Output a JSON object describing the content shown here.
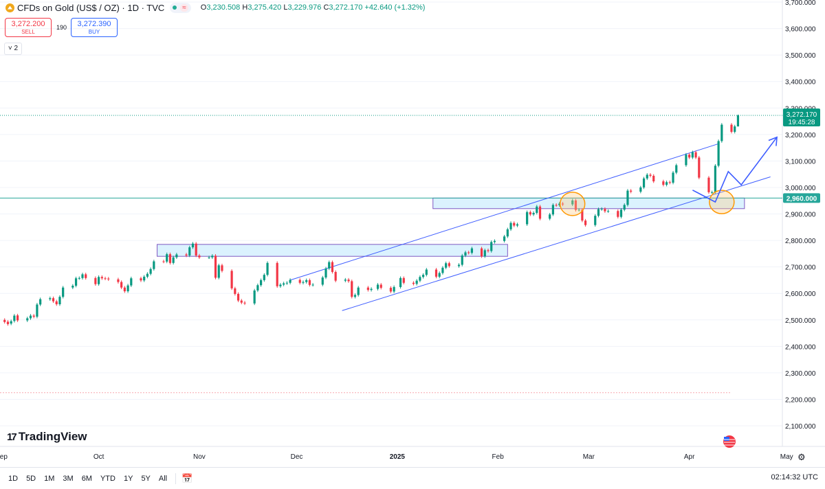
{
  "header": {
    "symbol": "CFDs on Gold (US$ / OZ) · 1D · TVC",
    "open_key": "O",
    "open": "3,230.508",
    "high_key": "H",
    "high": "3,275.420",
    "low_key": "L",
    "low": "3,229.976",
    "close_key": "C",
    "close": "3,272.170",
    "change": "+42.640 (+1.32%)",
    "wave_glyph": "≈"
  },
  "trade": {
    "sell_price": "3,272.200",
    "sell_label": "SELL",
    "spread": "190",
    "buy_price": "3,272.390",
    "buy_label": "BUY"
  },
  "indicators_collapse": "˅ 2",
  "logo": {
    "mark": "17",
    "text": "TradingView"
  },
  "timeframes": [
    "1D",
    "5D",
    "1M",
    "3M",
    "6M",
    "YTD",
    "1Y",
    "5Y",
    "All"
  ],
  "clock": "02:14:32 UTC",
  "colors": {
    "up": "#089981",
    "down": "#f23645",
    "trend": "#3d5cff",
    "zone_fill": "#cfeefd",
    "zone_border": "#7e57c2",
    "circle": "#ff9800",
    "level": "#26a69a"
  },
  "chart_data": {
    "type": "candlestick",
    "title": "CFDs on Gold (US$ / OZ) · 1D · TVC",
    "ylim": [
      2050,
      3700
    ],
    "y_ticks": [
      2100,
      2200,
      2300,
      2400,
      2500,
      2600,
      2700,
      2800,
      2900,
      3000,
      3100,
      3200,
      3300,
      3400,
      3500,
      3600,
      3700
    ],
    "y_tick_labels": [
      "2,100.000",
      "2,200.000",
      "2,300.000",
      "2,400.000",
      "2,500.000",
      "2,600.000",
      "2,700.000",
      "2,800.000",
      "2,900.000",
      "3,000.000",
      "3,100.000",
      "3,200.000",
      "3,300.000",
      "3,400.000",
      "3,500.000",
      "3,600.000",
      "3,700.000"
    ],
    "x_labels": [
      {
        "label": "Sep",
        "date": "2024-09-01"
      },
      {
        "label": "Oct",
        "date": "2024-10-01"
      },
      {
        "label": "Nov",
        "date": "2024-11-01"
      },
      {
        "label": "Dec",
        "date": "2024-12-01"
      },
      {
        "label": "2025",
        "date": "2025-01-01"
      },
      {
        "label": "Feb",
        "date": "2025-02-01"
      },
      {
        "label": "Mar",
        "date": "2025-03-01"
      },
      {
        "label": "Apr",
        "date": "2025-04-01"
      },
      {
        "label": "May",
        "date": "2025-05-01"
      }
    ],
    "start_date": "2024-09-01",
    "series": [
      {
        "d": "2024-09-02",
        "o": 2500,
        "c": 2492
      },
      {
        "d": "2024-09-03",
        "o": 2493,
        "c": 2484
      },
      {
        "d": "2024-09-04",
        "o": 2486,
        "c": 2495
      },
      {
        "d": "2024-09-05",
        "o": 2496,
        "c": 2516
      },
      {
        "d": "2024-09-06",
        "o": 2517,
        "c": 2498
      },
      {
        "d": "2024-09-09",
        "o": 2498,
        "c": 2506
      },
      {
        "d": "2024-09-10",
        "o": 2506,
        "c": 2516
      },
      {
        "d": "2024-09-11",
        "o": 2516,
        "c": 2512
      },
      {
        "d": "2024-09-12",
        "o": 2512,
        "c": 2558
      },
      {
        "d": "2024-09-13",
        "o": 2558,
        "c": 2578
      },
      {
        "d": "2024-09-16",
        "o": 2578,
        "c": 2582
      },
      {
        "d": "2024-09-17",
        "o": 2582,
        "c": 2570
      },
      {
        "d": "2024-09-18",
        "o": 2570,
        "c": 2559
      },
      {
        "d": "2024-09-19",
        "o": 2559,
        "c": 2587
      },
      {
        "d": "2024-09-20",
        "o": 2587,
        "c": 2622
      },
      {
        "d": "2024-09-23",
        "o": 2622,
        "c": 2629
      },
      {
        "d": "2024-09-24",
        "o": 2629,
        "c": 2657
      },
      {
        "d": "2024-09-25",
        "o": 2657,
        "c": 2658
      },
      {
        "d": "2024-09-26",
        "o": 2658,
        "c": 2672
      },
      {
        "d": "2024-09-27",
        "o": 2672,
        "c": 2658
      },
      {
        "d": "2024-09-30",
        "o": 2658,
        "c": 2635
      },
      {
        "d": "2024-10-01",
        "o": 2635,
        "c": 2662
      },
      {
        "d": "2024-10-02",
        "o": 2662,
        "c": 2657
      },
      {
        "d": "2024-10-03",
        "o": 2657,
        "c": 2656
      },
      {
        "d": "2024-10-04",
        "o": 2656,
        "c": 2653
      },
      {
        "d": "2024-10-07",
        "o": 2653,
        "c": 2643
      },
      {
        "d": "2024-10-08",
        "o": 2643,
        "c": 2622
      },
      {
        "d": "2024-10-09",
        "o": 2622,
        "c": 2608
      },
      {
        "d": "2024-10-10",
        "o": 2608,
        "c": 2630
      },
      {
        "d": "2024-10-11",
        "o": 2630,
        "c": 2657
      },
      {
        "d": "2024-10-14",
        "o": 2657,
        "c": 2649
      },
      {
        "d": "2024-10-15",
        "o": 2649,
        "c": 2663
      },
      {
        "d": "2024-10-16",
        "o": 2663,
        "c": 2674
      },
      {
        "d": "2024-10-17",
        "o": 2674,
        "c": 2692
      },
      {
        "d": "2024-10-18",
        "o": 2692,
        "c": 2721
      },
      {
        "d": "2024-10-21",
        "o": 2721,
        "c": 2720
      },
      {
        "d": "2024-10-22",
        "o": 2720,
        "c": 2748
      },
      {
        "d": "2024-10-23",
        "o": 2748,
        "c": 2715
      },
      {
        "d": "2024-10-24",
        "o": 2715,
        "c": 2736
      },
      {
        "d": "2024-10-25",
        "o": 2736,
        "c": 2747
      },
      {
        "d": "2024-10-28",
        "o": 2747,
        "c": 2743
      },
      {
        "d": "2024-10-29",
        "o": 2743,
        "c": 2774
      },
      {
        "d": "2024-10-30",
        "o": 2774,
        "c": 2788
      },
      {
        "d": "2024-10-31",
        "o": 2788,
        "c": 2743
      },
      {
        "d": "2024-11-01",
        "o": 2743,
        "c": 2736
      },
      {
        "d": "2024-11-04",
        "o": 2736,
        "c": 2736
      },
      {
        "d": "2024-11-05",
        "o": 2736,
        "c": 2742
      },
      {
        "d": "2024-11-06",
        "o": 2742,
        "c": 2659
      },
      {
        "d": "2024-11-07",
        "o": 2659,
        "c": 2706
      },
      {
        "d": "2024-11-08",
        "o": 2706,
        "c": 2685
      },
      {
        "d": "2024-11-11",
        "o": 2685,
        "c": 2619
      },
      {
        "d": "2024-11-12",
        "o": 2619,
        "c": 2598
      },
      {
        "d": "2024-11-13",
        "o": 2598,
        "c": 2573
      },
      {
        "d": "2024-11-14",
        "o": 2573,
        "c": 2565
      },
      {
        "d": "2024-11-15",
        "o": 2565,
        "c": 2562
      },
      {
        "d": "2024-11-18",
        "o": 2562,
        "c": 2611
      },
      {
        "d": "2024-11-19",
        "o": 2611,
        "c": 2631
      },
      {
        "d": "2024-11-20",
        "o": 2631,
        "c": 2650
      },
      {
        "d": "2024-11-21",
        "o": 2650,
        "c": 2670
      },
      {
        "d": "2024-11-22",
        "o": 2670,
        "c": 2715
      },
      {
        "d": "2024-11-25",
        "o": 2715,
        "c": 2627
      },
      {
        "d": "2024-11-26",
        "o": 2627,
        "c": 2633
      },
      {
        "d": "2024-11-27",
        "o": 2633,
        "c": 2638
      },
      {
        "d": "2024-11-28",
        "o": 2638,
        "c": 2640
      },
      {
        "d": "2024-11-29",
        "o": 2640,
        "c": 2651
      },
      {
        "d": "2024-12-02",
        "o": 2651,
        "c": 2640
      },
      {
        "d": "2024-12-03",
        "o": 2640,
        "c": 2643
      },
      {
        "d": "2024-12-04",
        "o": 2643,
        "c": 2650
      },
      {
        "d": "2024-12-05",
        "o": 2650,
        "c": 2632
      },
      {
        "d": "2024-12-06",
        "o": 2632,
        "c": 2633
      },
      {
        "d": "2024-12-09",
        "o": 2633,
        "c": 2660
      },
      {
        "d": "2024-12-10",
        "o": 2660,
        "c": 2694
      },
      {
        "d": "2024-12-11",
        "o": 2694,
        "c": 2718
      },
      {
        "d": "2024-12-12",
        "o": 2718,
        "c": 2681
      },
      {
        "d": "2024-12-13",
        "o": 2681,
        "c": 2648
      },
      {
        "d": "2024-12-16",
        "o": 2648,
        "c": 2652
      },
      {
        "d": "2024-12-17",
        "o": 2652,
        "c": 2646
      },
      {
        "d": "2024-12-18",
        "o": 2646,
        "c": 2587
      },
      {
        "d": "2024-12-19",
        "o": 2587,
        "c": 2594
      },
      {
        "d": "2024-12-20",
        "o": 2594,
        "c": 2622
      },
      {
        "d": "2024-12-23",
        "o": 2622,
        "c": 2613
      },
      {
        "d": "2024-12-24",
        "o": 2613,
        "c": 2617
      },
      {
        "d": "2024-12-26",
        "o": 2617,
        "c": 2633
      },
      {
        "d": "2024-12-27",
        "o": 2633,
        "c": 2621
      },
      {
        "d": "2024-12-30",
        "o": 2621,
        "c": 2607
      },
      {
        "d": "2024-12-31",
        "o": 2607,
        "c": 2624
      },
      {
        "d": "2025-01-02",
        "o": 2624,
        "c": 2658
      },
      {
        "d": "2025-01-03",
        "o": 2658,
        "c": 2640
      },
      {
        "d": "2025-01-06",
        "o": 2640,
        "c": 2636
      },
      {
        "d": "2025-01-07",
        "o": 2636,
        "c": 2648
      },
      {
        "d": "2025-01-08",
        "o": 2648,
        "c": 2662
      },
      {
        "d": "2025-01-09",
        "o": 2662,
        "c": 2670
      },
      {
        "d": "2025-01-10",
        "o": 2670,
        "c": 2690
      },
      {
        "d": "2025-01-13",
        "o": 2690,
        "c": 2663
      },
      {
        "d": "2025-01-14",
        "o": 2663,
        "c": 2677
      },
      {
        "d": "2025-01-15",
        "o": 2677,
        "c": 2697
      },
      {
        "d": "2025-01-16",
        "o": 2697,
        "c": 2714
      },
      {
        "d": "2025-01-17",
        "o": 2714,
        "c": 2703
      },
      {
        "d": "2025-01-20",
        "o": 2703,
        "c": 2708
      },
      {
        "d": "2025-01-21",
        "o": 2708,
        "c": 2743
      },
      {
        "d": "2025-01-22",
        "o": 2743,
        "c": 2755
      },
      {
        "d": "2025-01-23",
        "o": 2755,
        "c": 2753
      },
      {
        "d": "2025-01-24",
        "o": 2753,
        "c": 2770
      },
      {
        "d": "2025-01-27",
        "o": 2770,
        "c": 2740
      },
      {
        "d": "2025-01-28",
        "o": 2740,
        "c": 2763
      },
      {
        "d": "2025-01-29",
        "o": 2763,
        "c": 2760
      },
      {
        "d": "2025-01-30",
        "o": 2760,
        "c": 2794
      },
      {
        "d": "2025-01-31",
        "o": 2794,
        "c": 2798
      },
      {
        "d": "2025-02-03",
        "o": 2798,
        "c": 2815
      },
      {
        "d": "2025-02-04",
        "o": 2815,
        "c": 2842
      },
      {
        "d": "2025-02-05",
        "o": 2842,
        "c": 2866
      },
      {
        "d": "2025-02-06",
        "o": 2866,
        "c": 2856
      },
      {
        "d": "2025-02-07",
        "o": 2856,
        "c": 2861
      },
      {
        "d": "2025-02-10",
        "o": 2861,
        "c": 2907
      },
      {
        "d": "2025-02-11",
        "o": 2907,
        "c": 2898
      },
      {
        "d": "2025-02-12",
        "o": 2898,
        "c": 2904
      },
      {
        "d": "2025-02-13",
        "o": 2904,
        "c": 2928
      },
      {
        "d": "2025-02-14",
        "o": 2928,
        "c": 2882
      },
      {
        "d": "2025-02-17",
        "o": 2882,
        "c": 2898
      },
      {
        "d": "2025-02-18",
        "o": 2898,
        "c": 2934
      },
      {
        "d": "2025-02-19",
        "o": 2934,
        "c": 2933
      },
      {
        "d": "2025-02-20",
        "o": 2933,
        "c": 2939
      },
      {
        "d": "2025-02-21",
        "o": 2939,
        "c": 2936
      },
      {
        "d": "2025-02-24",
        "o": 2936,
        "c": 2951
      },
      {
        "d": "2025-02-25",
        "o": 2951,
        "c": 2915
      },
      {
        "d": "2025-02-26",
        "o": 2915,
        "c": 2916
      },
      {
        "d": "2025-02-27",
        "o": 2916,
        "c": 2875
      },
      {
        "d": "2025-02-28",
        "o": 2875,
        "c": 2858
      },
      {
        "d": "2025-03-03",
        "o": 2858,
        "c": 2893
      },
      {
        "d": "2025-03-04",
        "o": 2893,
        "c": 2918
      },
      {
        "d": "2025-03-05",
        "o": 2918,
        "c": 2919
      },
      {
        "d": "2025-03-06",
        "o": 2919,
        "c": 2910
      },
      {
        "d": "2025-03-07",
        "o": 2910,
        "c": 2911
      },
      {
        "d": "2025-03-10",
        "o": 2911,
        "c": 2889
      },
      {
        "d": "2025-03-11",
        "o": 2889,
        "c": 2916
      },
      {
        "d": "2025-03-12",
        "o": 2916,
        "c": 2934
      },
      {
        "d": "2025-03-13",
        "o": 2934,
        "c": 2988
      },
      {
        "d": "2025-03-14",
        "o": 2988,
        "c": 2984
      },
      {
        "d": "2025-03-17",
        "o": 2984,
        "c": 3000
      },
      {
        "d": "2025-03-18",
        "o": 3000,
        "c": 3034
      },
      {
        "d": "2025-03-19",
        "o": 3034,
        "c": 3048
      },
      {
        "d": "2025-03-20",
        "o": 3048,
        "c": 3044
      },
      {
        "d": "2025-03-21",
        "o": 3044,
        "c": 3023
      },
      {
        "d": "2025-03-24",
        "o": 3023,
        "c": 3010
      },
      {
        "d": "2025-03-25",
        "o": 3010,
        "c": 3020
      },
      {
        "d": "2025-03-26",
        "o": 3020,
        "c": 3018
      },
      {
        "d": "2025-03-27",
        "o": 3018,
        "c": 3056
      },
      {
        "d": "2025-03-28",
        "o": 3056,
        "c": 3084
      },
      {
        "d": "2025-03-31",
        "o": 3084,
        "c": 3124
      },
      {
        "d": "2025-04-01",
        "o": 3124,
        "c": 3113
      },
      {
        "d": "2025-04-02",
        "o": 3113,
        "c": 3133
      },
      {
        "d": "2025-04-03",
        "o": 3133,
        "c": 3113
      },
      {
        "d": "2025-04-04",
        "o": 3113,
        "c": 3037
      },
      {
        "d": "2025-04-07",
        "o": 3037,
        "c": 2982
      },
      {
        "d": "2025-04-08",
        "o": 2982,
        "c": 2982
      },
      {
        "d": "2025-04-09",
        "o": 2982,
        "c": 3082
      },
      {
        "d": "2025-04-10",
        "o": 3082,
        "c": 3175
      },
      {
        "d": "2025-04-11",
        "o": 3175,
        "c": 3237
      },
      {
        "d": "2025-04-14",
        "o": 3237,
        "c": 3210
      },
      {
        "d": "2025-04-15",
        "o": 3210,
        "c": 3230.508
      }
    ],
    "last_candle": {
      "d": "2025-04-16",
      "o": 3230.508,
      "h": 3275.42,
      "l": 3229.976,
      "c": 3272.17
    },
    "price_label": {
      "value": "3,272.170",
      "countdown": "19:45:28"
    },
    "level_line": {
      "value": 2960,
      "label": "2,960.000"
    },
    "dashed_level": 2225,
    "zones": [
      {
        "from": "2024-10-19",
        "to": "2025-02-04",
        "low": 2740,
        "high": 2785
      },
      {
        "from": "2025-01-12",
        "to": "2025-04-18",
        "low": 2920,
        "high": 2960
      }
    ],
    "channel": {
      "upper": [
        {
          "d": "2024-11-29",
          "v": 2650
        },
        {
          "d": "2025-04-10",
          "v": 3165
        }
      ],
      "lower": [
        {
          "d": "2024-12-15",
          "v": 2535
        },
        {
          "d": "2025-04-26",
          "v": 3040
        }
      ]
    },
    "projection": [
      {
        "d": "2025-04-02",
        "v": 2990
      },
      {
        "d": "2025-04-09",
        "v": 2945
      },
      {
        "d": "2025-04-13",
        "v": 3060
      },
      {
        "d": "2025-04-17",
        "v": 3010
      },
      {
        "d": "2025-04-28",
        "v": 3190
      }
    ],
    "highlight_circles": [
      {
        "d": "2025-02-24",
        "v": 2938
      },
      {
        "d": "2025-04-11",
        "v": 2945
      }
    ]
  }
}
